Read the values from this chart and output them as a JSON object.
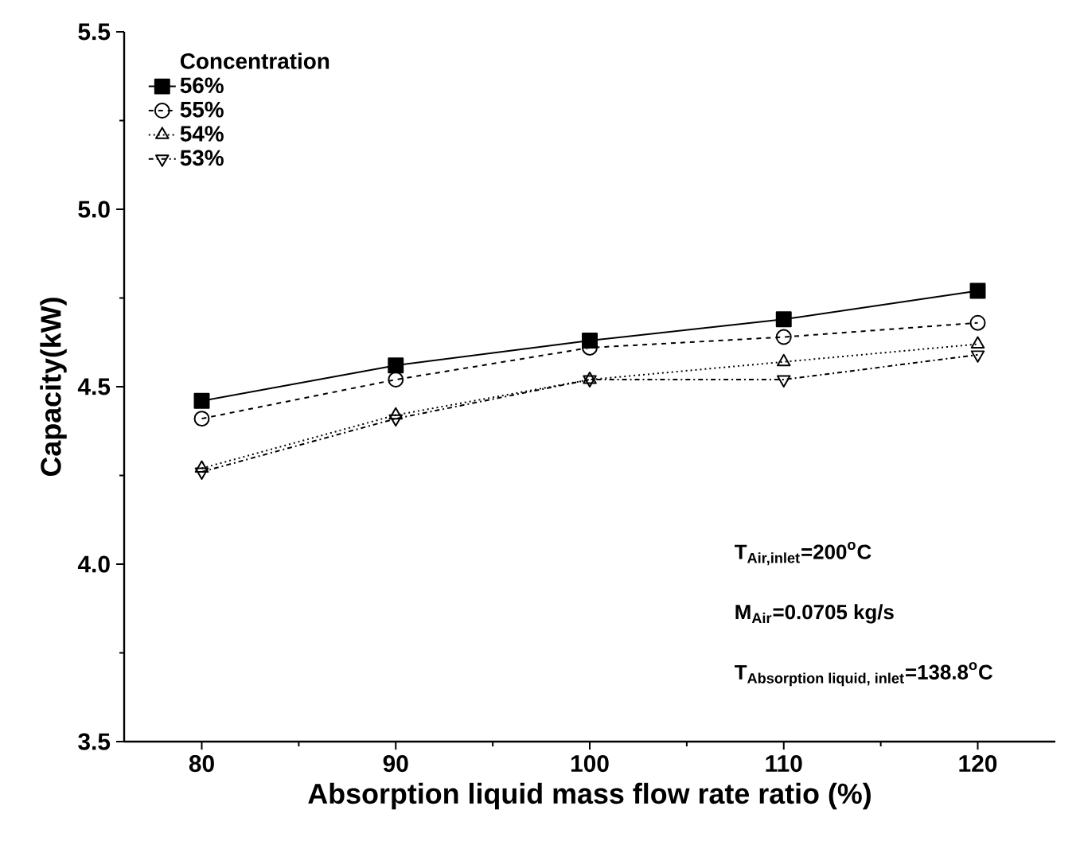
{
  "chart_data": {
    "type": "line",
    "xlabel": "Absorption liquid mass flow rate ratio (%)",
    "ylabel": "Capacity(kW)",
    "legend_title": "Concentration",
    "legend": "top left",
    "grid": false,
    "x": [
      80,
      90,
      100,
      110,
      120
    ],
    "xlim": [
      76,
      124
    ],
    "xticks": [
      80,
      90,
      100,
      110,
      120
    ],
    "ylim": [
      3.5,
      5.5
    ],
    "yticks": [
      3.5,
      {
        "value": 4,
        "label": "4.0"
      },
      4.5,
      {
        "value": 5,
        "label": "5.0"
      },
      5.5
    ],
    "series": [
      {
        "name": "56%",
        "color": "#000000",
        "marker": "square",
        "line_style": "solid",
        "values": [
          4.46,
          4.56,
          4.63,
          4.69,
          4.77
        ]
      },
      {
        "name": "55%",
        "color": "#000000",
        "marker": "circle",
        "line_style": "dashed",
        "values": [
          4.41,
          4.52,
          4.61,
          4.64,
          4.68
        ]
      },
      {
        "name": "54%",
        "color": "#000000",
        "marker": "triangle",
        "line_style": "dotted",
        "values": [
          4.27,
          4.42,
          4.52,
          4.57,
          4.62
        ]
      },
      {
        "name": "53%",
        "color": "#000000",
        "marker": "triangle-down",
        "line_style": "dashdot",
        "values": [
          4.26,
          4.41,
          4.52,
          4.52,
          4.59
        ]
      }
    ],
    "annotations": [
      "\\textbf{T}_{\\textbf{Air,inlet}}\\textbf{=200}^{\\textbf{o}}\\textbf{C}",
      "\\textbf{M}_{\\textbf{Air}}\\textbf{=0.0705 kg/s}",
      "\\textbf{T}_{\\textbf{Absorption liquid, inlet}}\\textbf{=138.8}^{\\textbf{o}}\\textbf{C}"
    ]
  }
}
